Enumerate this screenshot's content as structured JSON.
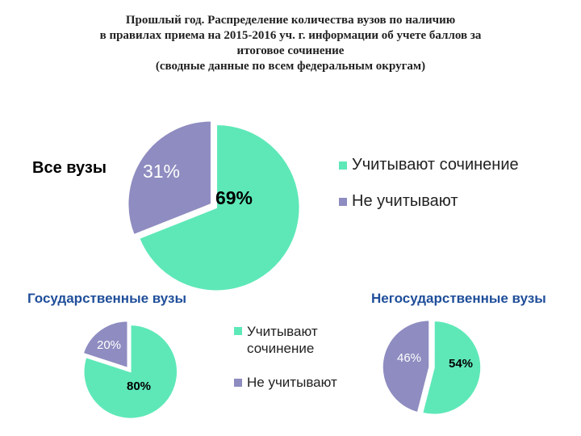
{
  "title": {
    "lines": [
      "Прошлый год. Распределение количества вузов по наличию",
      "в правилах приема на 2015-2016 уч. г. информации об учете баллов за",
      "итоговое сочинение",
      "(сводные данные по всем федеральным округам)"
    ]
  },
  "colors": {
    "accounted": "#5ee8b8",
    "not_accounted": "#8e8cc0",
    "edge": "#ffffff",
    "subtitle": "#1f4e9a"
  },
  "chart_data": [
    {
      "type": "pie",
      "title": "Все вузы",
      "categories": [
        "Учитывают сочинение",
        "Не учитывают"
      ],
      "values": [
        69,
        31
      ],
      "data_labels": [
        "69%",
        "31%"
      ],
      "legend": [
        "Учитывают сочинение",
        "Не учитывают"
      ]
    },
    {
      "type": "pie",
      "title": "Государственные вузы",
      "categories": [
        "Учитывают сочинение",
        "Не учитывают"
      ],
      "values": [
        80,
        20
      ],
      "data_labels": [
        "80%",
        "20%"
      ],
      "legend": [
        "Учитывают\nсочинение",
        "Не учитывают"
      ]
    },
    {
      "type": "pie",
      "title": "Негосударственные вузы",
      "categories": [
        "Учитывают сочинение",
        "Не учитывают"
      ],
      "values": [
        54,
        46
      ],
      "data_labels": [
        "54%",
        "46%"
      ]
    }
  ]
}
